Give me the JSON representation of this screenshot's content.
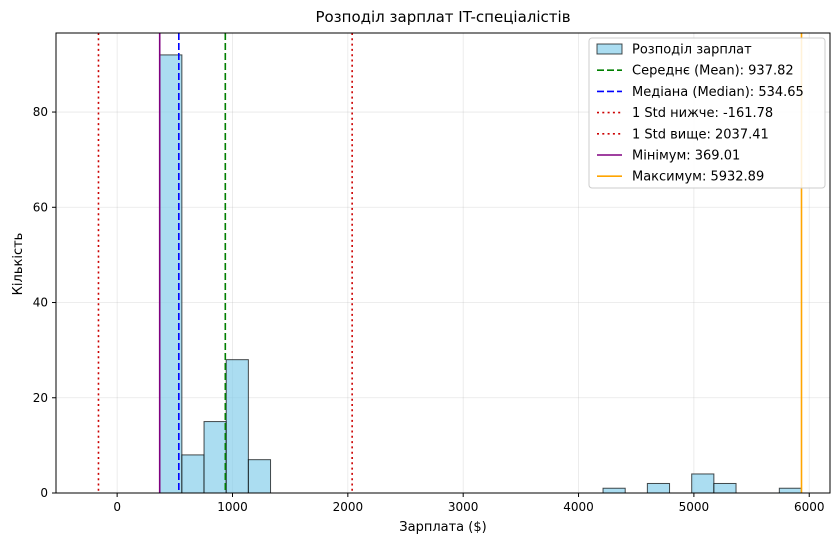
{
  "chart_data": {
    "type": "bar",
    "title": "Розподіл зарплат IT-спеціалістів",
    "xlabel": "Зарплата ($)",
    "ylabel": "Кількість",
    "xlim": [
      -530,
      6180
    ],
    "ylim": [
      0,
      96.6
    ],
    "xticks": [
      0,
      1000,
      2000,
      3000,
      4000,
      5000,
      6000
    ],
    "yticks": [
      0,
      20,
      40,
      60,
      80
    ],
    "grid": true,
    "legend_position": "top-right",
    "bin_width": 192.17,
    "bins": [
      {
        "start": 369.01,
        "count": 92
      },
      {
        "start": 561.18,
        "count": 8
      },
      {
        "start": 753.35,
        "count": 15
      },
      {
        "start": 945.52,
        "count": 28
      },
      {
        "start": 1137.69,
        "count": 7
      },
      {
        "start": 4212.41,
        "count": 1
      },
      {
        "start": 4596.75,
        "count": 2
      },
      {
        "start": 4981.09,
        "count": 4
      },
      {
        "start": 5173.26,
        "count": 2
      },
      {
        "start": 5740.72,
        "count": 1
      }
    ],
    "histogram_label": "Розподіл зарплат",
    "histogram_color": "#87ceeb",
    "lines": [
      {
        "id": "mean",
        "label": "Середнє (Mean): 937.82",
        "value": 937.82,
        "color": "#008000",
        "style": "dashed"
      },
      {
        "id": "median",
        "label": "Медіана (Median): 534.65",
        "value": 534.65,
        "color": "#0000ff",
        "style": "dashed"
      },
      {
        "id": "std-low",
        "label": "1 Std нижче: -161.78",
        "value": -161.78,
        "color": "#cc0000",
        "style": "dotted"
      },
      {
        "id": "std-high",
        "label": "1 Std вище: 2037.41",
        "value": 2037.41,
        "color": "#cc0000",
        "style": "dotted"
      },
      {
        "id": "min",
        "label": "Мінімум: 369.01",
        "value": 369.01,
        "color": "#800080",
        "style": "solid"
      },
      {
        "id": "max",
        "label": "Максимум: 5932.89",
        "value": 5932.89,
        "color": "#ffa500",
        "style": "solid"
      }
    ]
  }
}
